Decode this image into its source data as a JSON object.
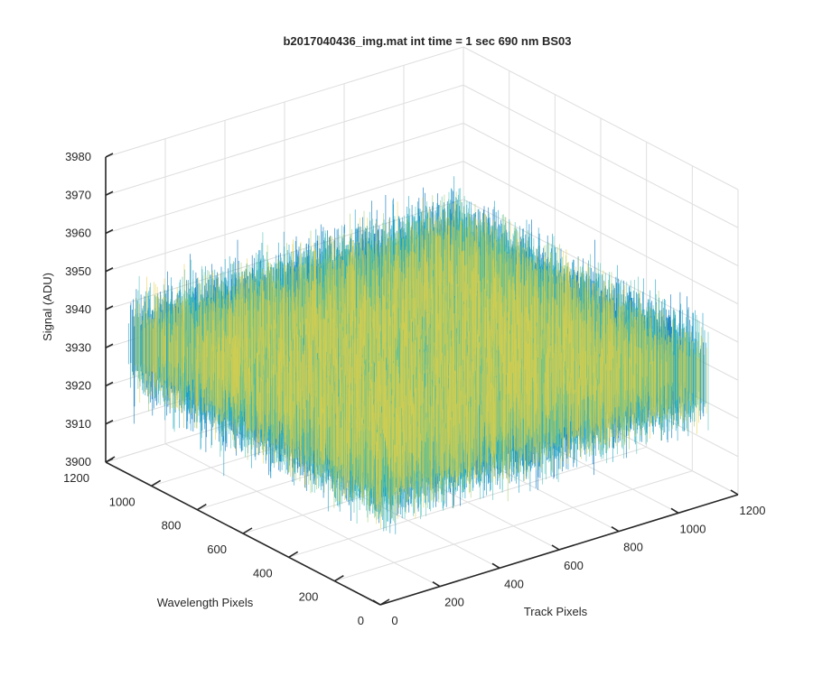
{
  "chart_data": {
    "type": "surface",
    "title": "b2017040436_img.mat int time = 1 sec  690 nm BS03",
    "xlabel": "Track Pixels",
    "ylabel": "Wavelength Pixels",
    "zlabel": "Signal (ADU)",
    "xlim": [
      0,
      1200
    ],
    "ylim": [
      0,
      1200
    ],
    "zlim": [
      3900,
      3980
    ],
    "x_ticks": [
      "0",
      "200",
      "400",
      "600",
      "800",
      "1000",
      "1200"
    ],
    "y_ticks": [
      "0",
      "200",
      "400",
      "600",
      "800",
      "1000",
      "1200"
    ],
    "z_ticks": [
      "3900",
      "3910",
      "3920",
      "3930",
      "3940",
      "3950",
      "3960",
      "3970",
      "3980"
    ],
    "grid": true,
    "surface": {
      "x_range": [
        0,
        1100
      ],
      "y_range": [
        0,
        1100
      ],
      "mean_signal": 3935,
      "noise_spread": [
        3910,
        3960
      ],
      "colormap": [
        "#0072bd",
        "#1aa0c8",
        "#3dbcb0",
        "#9ccb6a",
        "#e6cf46"
      ]
    }
  }
}
